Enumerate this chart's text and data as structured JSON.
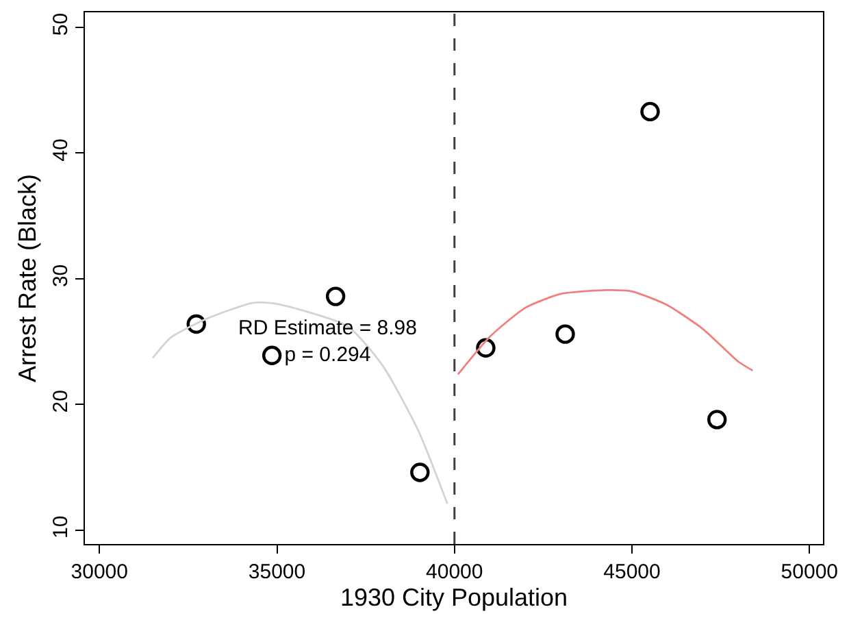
{
  "chart_data": {
    "type": "scatter",
    "xlabel": "1930 City Population",
    "ylabel": "Arrest Rate (Black)",
    "xlim": [
      29590,
      50380
    ],
    "ylim": [
      8.9,
      51.2
    ],
    "xticks": [
      30000,
      35000,
      40000,
      45000,
      50000
    ],
    "yticks": [
      10,
      20,
      30,
      40,
      50
    ],
    "series": [
      {
        "marker": "circle",
        "color": "#000000",
        "x": [
          32728,
          34858,
          36651,
          39027,
          40881,
          43119,
          45510,
          47395
        ],
        "values": [
          26.4,
          23.9,
          28.6,
          14.6,
          24.5,
          25.6,
          43.3,
          18.8
        ]
      },
      {
        "type": "line",
        "color": "#d3d3d3",
        "x": [
          31500,
          32000,
          33000,
          34340,
          35000,
          37000,
          38000,
          39000,
          39800
        ],
        "values": [
          23.7,
          25.3,
          26.8,
          28.1,
          28.0,
          26.2,
          23.0,
          17.8,
          12.1
        ]
      },
      {
        "type": "line",
        "color": "#f08080",
        "x": [
          40100,
          41000,
          42000,
          43000,
          44300,
          45000,
          46000,
          47000,
          48000,
          48400
        ],
        "values": [
          22.4,
          25.4,
          27.7,
          28.8,
          29.1,
          29.0,
          27.9,
          26.0,
          23.4,
          22.7
        ]
      }
    ],
    "ref_lines": [
      {
        "axis": "x",
        "value": 40000,
        "color": "#404040",
        "line_style": "dashed"
      }
    ],
    "annotations": [
      "RD Estimate = 8.98\np = 0.294"
    ]
  }
}
